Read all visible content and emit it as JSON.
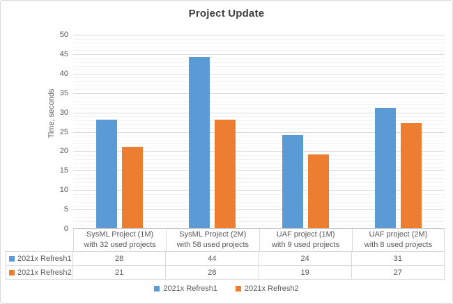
{
  "chart_data": {
    "type": "bar",
    "title": "Project Update",
    "xlabel": "",
    "ylabel": "Time, seconds",
    "ylim": [
      0,
      50
    ],
    "y_major_step": 5,
    "y_minor_step": 1,
    "grid": true,
    "legend_position": "bottom",
    "data_table_shown": true,
    "categories": [
      "SysML Project (1M) with 32 used projects",
      "SysML Project (2M) with 58 used projects",
      "UAF project (1M) with 9 used projects",
      "UAF project (2M) with 8 used projects"
    ],
    "category_lines": [
      [
        "SysML Project (1M)",
        "with 32 used projects"
      ],
      [
        "SysML Project (2M)",
        "with 58 used projects"
      ],
      [
        "UAF project (1M)",
        "with 9 used projects"
      ],
      [
        "UAF project (2M)",
        "with 8 used projects"
      ]
    ],
    "series": [
      {
        "name": "2021x Refresh1",
        "color": "#5B9BD5",
        "values": [
          28,
          44,
          24,
          31
        ]
      },
      {
        "name": "2021x Refresh2",
        "color": "#ED7D31",
        "values": [
          21,
          28,
          19,
          27
        ]
      }
    ]
  },
  "colors": {
    "title_text": "#3F3F3F",
    "axis_text": "#595959",
    "major_gridline": "#D9D9D9",
    "minor_gridline": "#F2F2F2",
    "axis_line": "#C8C8C8",
    "table_border": "#D9D9D9",
    "frame_border": "#D9D9D9",
    "background": "#FFFFFF"
  }
}
